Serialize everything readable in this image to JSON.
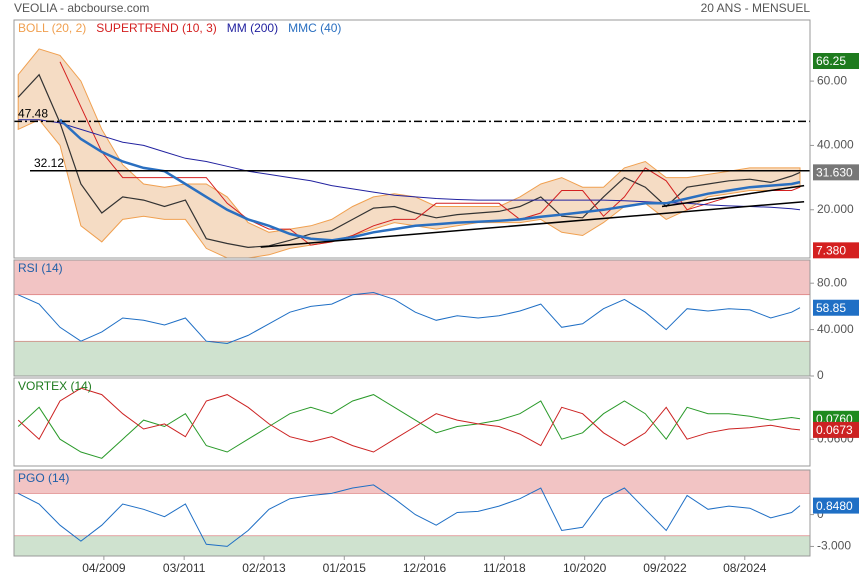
{
  "header": {
    "title": "VEOLIA - abcbourse.com",
    "period": "20 ANS - MENSUEL"
  },
  "chart_data": [
    {
      "type": "line",
      "x": [
        2007.2,
        2007.7,
        2008.2,
        2008.7,
        2009.2,
        2009.7,
        2010.2,
        2010.7,
        2011.2,
        2011.7,
        2012.2,
        2012.7,
        2013.2,
        2013.7,
        2014.2,
        2014.7,
        2015.2,
        2015.7,
        2016.2,
        2016.7,
        2017.2,
        2017.7,
        2018.2,
        2018.7,
        2019.2,
        2019.7,
        2020.2,
        2020.7,
        2021.2,
        2021.7,
        2022.2,
        2022.7,
        2023.2,
        2023.7,
        2024.2,
        2024.7,
        2025.2,
        2025.7,
        2025.9
      ],
      "xlim": [
        2007.1,
        2026.14
      ],
      "ylim": [
        5,
        79
      ],
      "yticks": [
        {
          "value": 60,
          "label": "60.00"
        },
        {
          "value": 40,
          "label": "40.000"
        },
        {
          "value": 20,
          "label": "20.000"
        }
      ],
      "color": "#333333",
      "values": [
        55,
        62,
        47,
        28,
        19,
        24,
        23,
        21,
        23,
        11,
        9.5,
        8.3,
        8.8,
        10.5,
        12.5,
        13.5,
        17,
        20.5,
        21,
        19,
        17.5,
        18.5,
        19,
        19.5,
        21,
        24,
        18,
        17.5,
        24,
        30,
        27,
        21,
        27,
        28,
        29,
        29.5,
        28.5,
        30.5,
        31.63
      ],
      "series": [
        {
          "name": "BOLL (20, 2)",
          "color": "#f0a050",
          "fill": "#f5dcc4",
          "upper": [
            62,
            70,
            68,
            60,
            45,
            34,
            28,
            27,
            28,
            28,
            24,
            16,
            13,
            14,
            15,
            17,
            21,
            24,
            25,
            24,
            21,
            21,
            21,
            21,
            24,
            28,
            30,
            27,
            27,
            33,
            35,
            30,
            30,
            31,
            32,
            33,
            33,
            33,
            33
          ],
          "lower": [
            45,
            48,
            40,
            15,
            10,
            17,
            18,
            17,
            17,
            8,
            5,
            5,
            6,
            8,
            9,
            10,
            12,
            14,
            16,
            15,
            14,
            15,
            16,
            16,
            16,
            17,
            13,
            12,
            16,
            21,
            22,
            17,
            20,
            24,
            25,
            26,
            26,
            27,
            27
          ]
        },
        {
          "name": "SUPERTREND (10, 3)",
          "color": "#d42020",
          "width": 1,
          "values": [
            null,
            null,
            66,
            52,
            38,
            30,
            30,
            30,
            30,
            30,
            22,
            17,
            14,
            14,
            9,
            10,
            12,
            15,
            17,
            17,
            22,
            22,
            22,
            22,
            17,
            19,
            26,
            26,
            18,
            24,
            33,
            29,
            20,
            22,
            24,
            25,
            26,
            26,
            27
          ]
        },
        {
          "name": "MM (200)",
          "color": "#2222a0",
          "width": 1,
          "values": [
            48,
            48,
            47,
            45,
            43,
            41,
            40,
            38,
            36,
            35,
            33.5,
            32,
            31,
            30,
            29,
            27.5,
            26.5,
            25.5,
            24.5,
            24,
            23.5,
            23.2,
            23,
            23,
            23,
            23,
            23,
            23,
            23,
            22.8,
            22.5,
            22.2,
            22,
            21.5,
            21.2,
            21,
            20.8,
            20.3,
            20
          ]
        },
        {
          "name": "MMC (40)",
          "color": "#2a6fc0",
          "width": 2.5,
          "values": [
            null,
            null,
            48,
            42,
            38,
            35,
            33,
            32,
            28,
            24,
            20,
            17,
            15,
            12.5,
            11,
            10.5,
            11.5,
            13,
            14,
            15,
            15.5,
            16,
            16.3,
            16.6,
            17,
            17.8,
            18.5,
            19.2,
            20,
            21,
            22,
            22,
            23.5,
            25,
            26,
            27,
            27.5,
            28,
            28.6
          ]
        }
      ],
      "levels": [
        {
          "value": 47.48,
          "style": "dashdot"
        },
        {
          "value": 32.12,
          "style": "solid"
        }
      ],
      "trendlines": [
        {
          "x": [
            2013.0,
            2026.0
          ],
          "values": [
            8.4,
            22.5
          ]
        },
        {
          "x": [
            2022.6,
            2026.0
          ],
          "values": [
            21,
            27.5
          ]
        }
      ],
      "value_boxes": [
        {
          "value": 66.25,
          "color": "#1e7b1e"
        },
        {
          "value": 31.63,
          "label": "31.630",
          "color": "#777777"
        },
        {
          "value": 7.38,
          "label": "7.380",
          "color": "#d42020"
        }
      ]
    },
    {
      "type": "line",
      "title": "RSI (14)",
      "title_color": "#1f5fa8",
      "x": [
        2007.2,
        2007.7,
        2008.2,
        2008.7,
        2009.2,
        2009.7,
        2010.2,
        2010.7,
        2011.2,
        2011.7,
        2012.2,
        2012.7,
        2013.2,
        2013.7,
        2014.2,
        2014.7,
        2015.2,
        2015.7,
        2016.2,
        2016.7,
        2017.2,
        2017.7,
        2018.2,
        2018.7,
        2019.2,
        2019.7,
        2020.2,
        2020.7,
        2021.2,
        2021.7,
        2022.2,
        2022.7,
        2023.2,
        2023.7,
        2024.2,
        2024.7,
        2025.2,
        2025.7,
        2025.9
      ],
      "xlim": [
        2007.1,
        2026.14
      ],
      "ylim": [
        0,
        100
      ],
      "yticks": [
        {
          "value": 80,
          "label": "80.00"
        },
        {
          "value": 40,
          "label": "40.000"
        },
        0
      ],
      "bands": [
        {
          "from": 70,
          "to": 100,
          "color": "#f2c4c4"
        },
        {
          "from": 0,
          "to": 30,
          "color": "#cfe2cf"
        }
      ],
      "series": [
        {
          "color": "#1f6fc5",
          "width": 1,
          "values": [
            70,
            62,
            42,
            30,
            38,
            50,
            48,
            44,
            50,
            30,
            28,
            35,
            45,
            55,
            60,
            62,
            70,
            72,
            66,
            55,
            48,
            52,
            50,
            52,
            56,
            62,
            42,
            45,
            58,
            66,
            55,
            40,
            58,
            56,
            58,
            57,
            50,
            55,
            58.85
          ]
        }
      ],
      "value_boxes": [
        {
          "value": 58.85,
          "color": "#1f6fc5"
        }
      ]
    },
    {
      "type": "line",
      "title": "VORTEX (14)",
      "title_color": "#1e7b1e",
      "x": [
        2007.2,
        2007.7,
        2008.2,
        2008.7,
        2009.2,
        2009.7,
        2010.2,
        2010.7,
        2011.2,
        2011.7,
        2012.2,
        2012.7,
        2013.2,
        2013.7,
        2014.2,
        2014.7,
        2015.2,
        2015.7,
        2016.2,
        2016.7,
        2017.2,
        2017.7,
        2018.2,
        2018.7,
        2019.2,
        2019.7,
        2020.2,
        2020.7,
        2021.2,
        2021.7,
        2022.2,
        2022.7,
        2023.2,
        2023.7,
        2024.2,
        2024.7,
        2025.2,
        2025.7,
        2025.9
      ],
      "xlim": [
        2007.1,
        2026.14
      ],
      "ylim": [
        0.039,
        0.108
      ],
      "yticks": [
        {
          "value": 0.06,
          "label": "0.0600"
        }
      ],
      "series": [
        {
          "color": "#2a9a2a",
          "width": 1,
          "values": [
            0.07,
            0.085,
            0.06,
            0.05,
            0.045,
            0.06,
            0.075,
            0.07,
            0.08,
            0.055,
            0.05,
            0.06,
            0.07,
            0.08,
            0.085,
            0.08,
            0.09,
            0.095,
            0.085,
            0.075,
            0.065,
            0.07,
            0.072,
            0.075,
            0.08,
            0.09,
            0.06,
            0.065,
            0.08,
            0.09,
            0.08,
            0.06,
            0.085,
            0.08,
            0.08,
            0.078,
            0.075,
            0.077,
            0.076
          ]
        },
        {
          "color": "#cc2222",
          "width": 1,
          "values": [
            0.075,
            0.06,
            0.09,
            0.1,
            0.095,
            0.08,
            0.068,
            0.072,
            0.062,
            0.09,
            0.095,
            0.085,
            0.072,
            0.062,
            0.058,
            0.062,
            0.055,
            0.05,
            0.06,
            0.07,
            0.08,
            0.075,
            0.072,
            0.07,
            0.064,
            0.055,
            0.085,
            0.08,
            0.065,
            0.055,
            0.065,
            0.085,
            0.06,
            0.065,
            0.068,
            0.069,
            0.071,
            0.068,
            0.0673
          ]
        }
      ],
      "value_boxes": [
        {
          "value": 0.076,
          "label": "0.0760",
          "color": "#1e8a1e"
        },
        {
          "value": 0.0673,
          "label": "0.0673",
          "color": "#cc2222"
        }
      ]
    },
    {
      "type": "line",
      "title": "PGO (14)",
      "title_color": "#1f5fa8",
      "x": [
        2007.2,
        2007.7,
        2008.2,
        2008.7,
        2009.2,
        2009.7,
        2010.2,
        2010.7,
        2011.2,
        2011.7,
        2012.2,
        2012.7,
        2013.2,
        2013.7,
        2014.2,
        2014.7,
        2015.2,
        2015.7,
        2016.2,
        2016.7,
        2017.2,
        2017.7,
        2018.2,
        2018.7,
        2019.2,
        2019.7,
        2020.2,
        2020.7,
        2021.2,
        2021.7,
        2022.2,
        2022.7,
        2023.2,
        2023.7,
        2024.2,
        2024.7,
        2025.2,
        2025.7,
        2025.9
      ],
      "xlim": [
        2007.1,
        2026.14
      ],
      "ylim": [
        -3.9,
        4.2
      ],
      "yticks": [
        0,
        {
          "value": -3,
          "label": "-3.000"
        }
      ],
      "bands": [
        {
          "from": 2,
          "to": 4.2,
          "color": "#f2c4c4"
        },
        {
          "from": -3.9,
          "to": -2,
          "color": "#cfe2cf"
        }
      ],
      "series": [
        {
          "color": "#1f6fc5",
          "width": 1,
          "values": [
            2,
            1,
            -1,
            -2.5,
            -1,
            1,
            0.5,
            -0.2,
            1,
            -2.8,
            -3,
            -1.5,
            0.5,
            1.5,
            1.8,
            2,
            2.5,
            2.8,
            1.5,
            0,
            -1,
            0.2,
            0.3,
            0.8,
            1.5,
            2.5,
            -1.5,
            -1.2,
            1.5,
            2.5,
            0.5,
            -1.5,
            1.8,
            0.5,
            0.8,
            0.6,
            -0.3,
            0.2,
            0.848
          ]
        }
      ],
      "value_boxes": [
        {
          "value": 0.848,
          "label": "0.8480",
          "color": "#1f6fc5"
        }
      ],
      "xticks": [
        {
          "value": 2009.25,
          "label": "04/2009"
        },
        {
          "value": 2011.17,
          "label": "03/2011"
        },
        {
          "value": 2013.08,
          "label": "02/2013"
        },
        {
          "value": 2015.0,
          "label": "01/2015"
        },
        {
          "value": 2016.92,
          "label": "12/2016"
        },
        {
          "value": 2018.83,
          "label": "11/2018"
        },
        {
          "value": 2020.75,
          "label": "10/2020"
        },
        {
          "value": 2022.67,
          "label": "09/2022"
        },
        {
          "value": 2024.58,
          "label": "08/2024"
        }
      ]
    }
  ]
}
